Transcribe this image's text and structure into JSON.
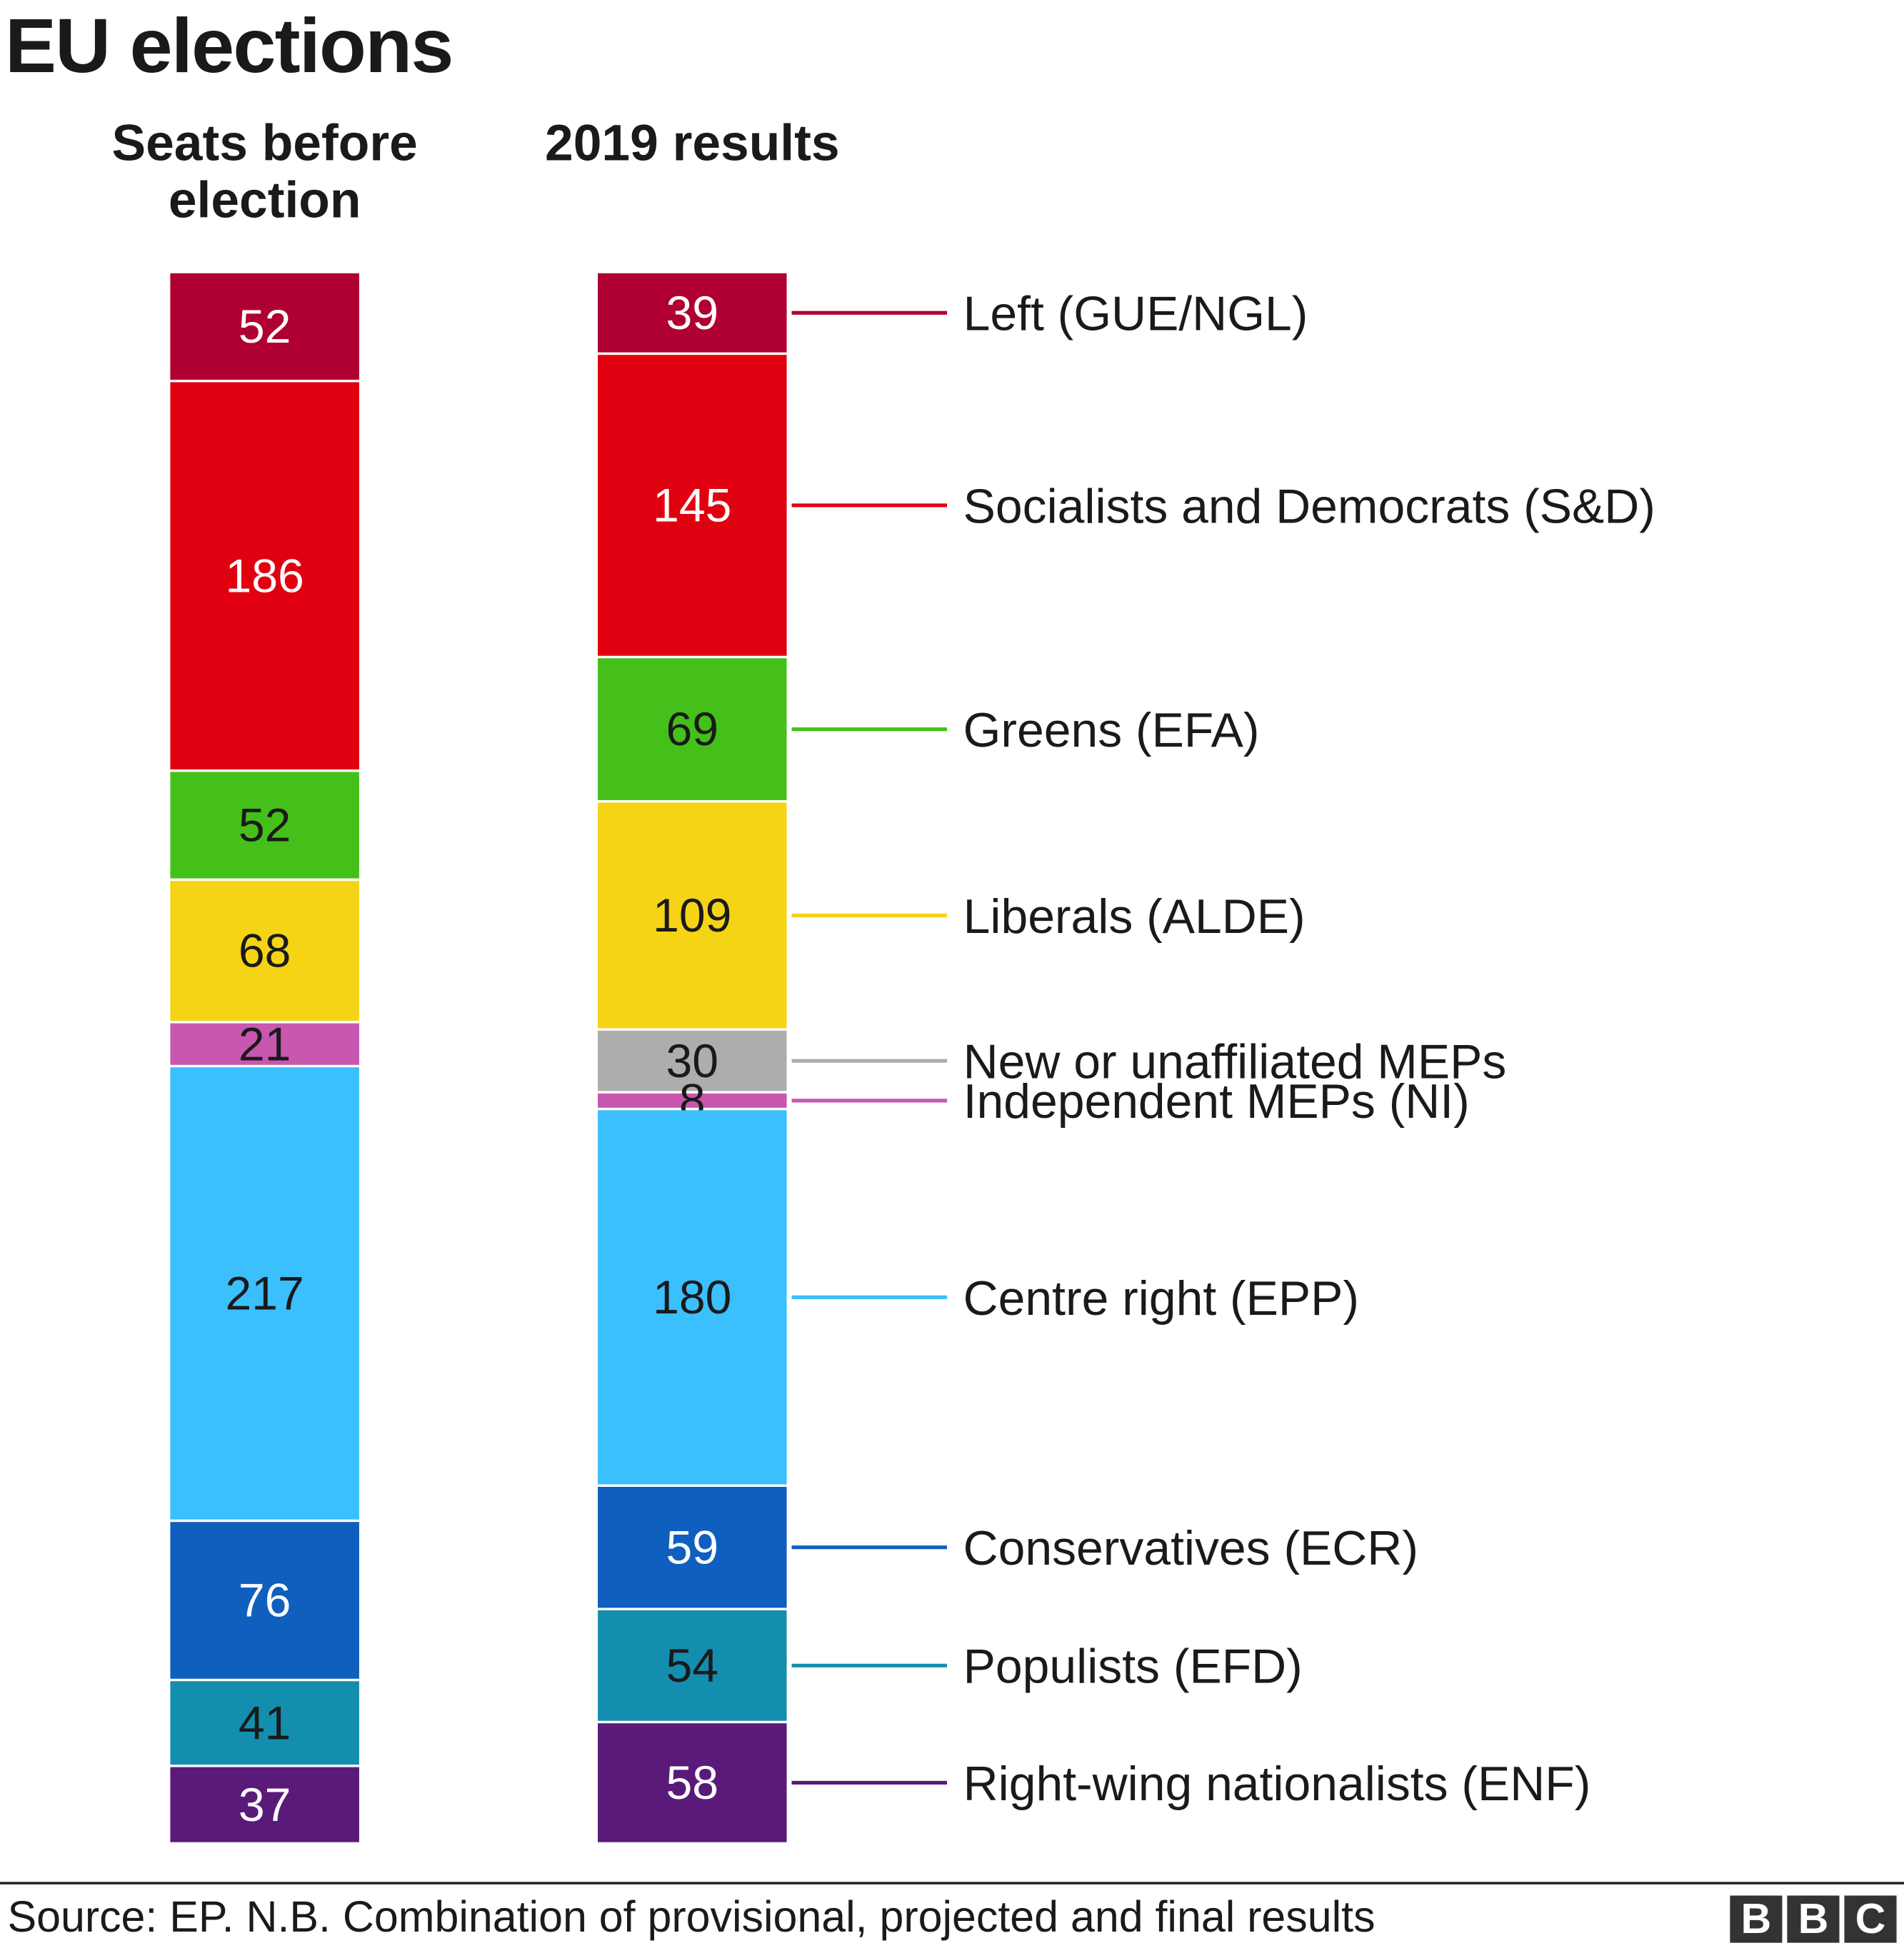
{
  "chart_data": {
    "type": "stacked-bar",
    "title": "EU elections",
    "categories": [
      "Seats before election",
      "2019 results"
    ],
    "series": [
      {
        "name": "Left (GUE/NGL)",
        "color": "#b00032",
        "values": [
          52,
          39
        ],
        "text_color": "#ffffff"
      },
      {
        "name": "Socialists and Democrats (S&D)",
        "color": "#e1000f",
        "values": [
          186,
          145
        ],
        "text_color": "#ffffff"
      },
      {
        "name": "Greens (EFA)",
        "color": "#45c01a",
        "values": [
          52,
          69
        ],
        "text_color": "#1a1a1a"
      },
      {
        "name": "Liberals (ALDE)",
        "color": "#f5d415",
        "values": [
          68,
          109
        ],
        "text_color": "#1a1a1a"
      },
      {
        "name": "New or unaffiliated MEPs",
        "color": "#adadad",
        "values": [
          0,
          30
        ],
        "text_color": "#1a1a1a"
      },
      {
        "name": "Independent MEPs (NI)",
        "color": "#c757af",
        "values": [
          21,
          8
        ],
        "text_color": "#1a1a1a"
      },
      {
        "name": "Centre right (EPP)",
        "color": "#3bbffd",
        "values": [
          217,
          180
        ],
        "text_color": "#1a1a1a"
      },
      {
        "name": "Conservatives (ECR)",
        "color": "#0f5fbf",
        "values": [
          76,
          59
        ],
        "text_color": "#ffffff"
      },
      {
        "name": "Populists (EFD)",
        "color": "#148eae",
        "values": [
          41,
          54
        ],
        "text_color": "#1a1a1a"
      },
      {
        "name": "Right-wing nationalists (ENF)",
        "color": "#5a1a7a",
        "values": [
          37,
          58
        ],
        "text_color": "#ffffff"
      }
    ],
    "legend": "right, labels attached to 2019 results column"
  },
  "header": {
    "title": "EU elections",
    "col1": "Seats before election",
    "col2": "2019 results"
  },
  "footer": {
    "source": "Source: EP. N.B. Combination of provisional, projected and final results",
    "logo": "BBC"
  }
}
